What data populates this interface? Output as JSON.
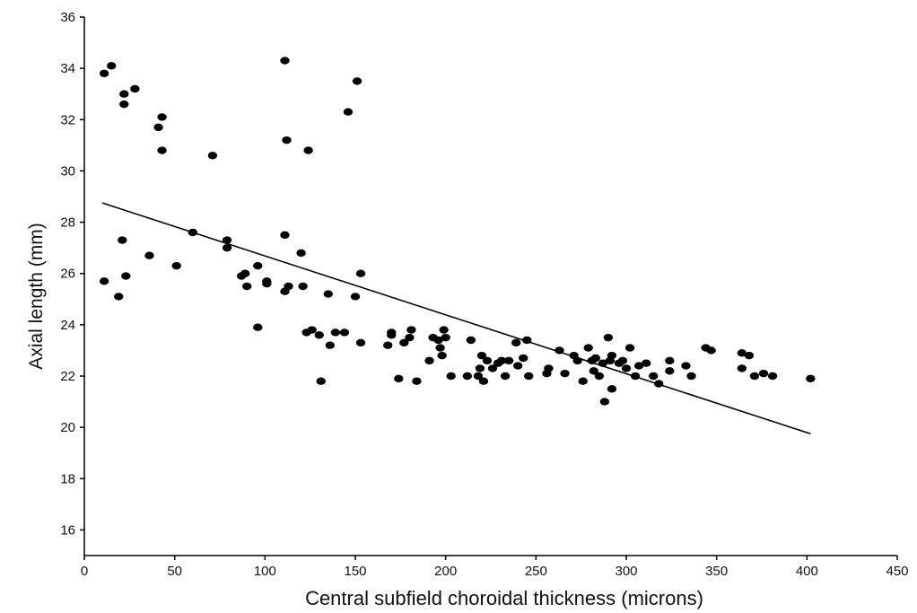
{
  "chart_data": {
    "type": "scatter",
    "title": "",
    "xlabel": "Central subfield choroidal thickness (microns)",
    "ylabel": "Axial length (mm)",
    "xlim": [
      0,
      450
    ],
    "ylim": [
      15,
      36
    ],
    "xticks": [
      0,
      50,
      100,
      150,
      200,
      250,
      300,
      350,
      400,
      450
    ],
    "yticks": [
      16,
      18,
      20,
      22,
      24,
      26,
      28,
      30,
      32,
      34,
      36
    ],
    "grid": false,
    "legend": "none",
    "point_color": "#000000",
    "line_color": "#000000",
    "trendline": {
      "x": [
        10,
        402
      ],
      "y": [
        28.75,
        19.75
      ]
    },
    "series": [
      {
        "points": [
          [
            11,
            33.8
          ],
          [
            15,
            34.1
          ],
          [
            22,
            33.0
          ],
          [
            22,
            32.6
          ],
          [
            28,
            33.2
          ],
          [
            41,
            31.7
          ],
          [
            43,
            32.1
          ],
          [
            43,
            30.8
          ],
          [
            11,
            25.7
          ],
          [
            19,
            25.1
          ],
          [
            21,
            27.3
          ],
          [
            23,
            25.9
          ],
          [
            36,
            26.7
          ],
          [
            51,
            26.3
          ],
          [
            60,
            27.6
          ],
          [
            71,
            30.6
          ],
          [
            79,
            27.3
          ],
          [
            79,
            27.0
          ],
          [
            87,
            25.9
          ],
          [
            89,
            26.0
          ],
          [
            90,
            25.5
          ],
          [
            96,
            26.3
          ],
          [
            96,
            23.9
          ],
          [
            101,
            25.6
          ],
          [
            101,
            25.7
          ],
          [
            111,
            34.3
          ],
          [
            111,
            27.5
          ],
          [
            111,
            25.3
          ],
          [
            112,
            31.2
          ],
          [
            113,
            25.5
          ],
          [
            120,
            26.8
          ],
          [
            121,
            25.5
          ],
          [
            123,
            23.7
          ],
          [
            124,
            30.8
          ],
          [
            126,
            23.8
          ],
          [
            130,
            23.6
          ],
          [
            131,
            21.8
          ],
          [
            135,
            25.2
          ],
          [
            136,
            23.2
          ],
          [
            139,
            23.7
          ],
          [
            144,
            23.7
          ],
          [
            146,
            32.3
          ],
          [
            150,
            25.1
          ],
          [
            151,
            33.5
          ],
          [
            153,
            26.0
          ],
          [
            153,
            23.3
          ],
          [
            168,
            23.2
          ],
          [
            170,
            23.6
          ],
          [
            170,
            23.7
          ],
          [
            174,
            21.9
          ],
          [
            177,
            23.3
          ],
          [
            180,
            23.5
          ],
          [
            181,
            23.8
          ],
          [
            184,
            21.8
          ],
          [
            191,
            22.6
          ],
          [
            193,
            23.5
          ],
          [
            196,
            23.4
          ],
          [
            197,
            23.1
          ],
          [
            198,
            22.8
          ],
          [
            199,
            23.8
          ],
          [
            200,
            23.5
          ],
          [
            203,
            22.0
          ],
          [
            212,
            22.0
          ],
          [
            214,
            23.4
          ],
          [
            218,
            22.0
          ],
          [
            219,
            22.3
          ],
          [
            220,
            22.8
          ],
          [
            221,
            21.8
          ],
          [
            223,
            22.6
          ],
          [
            226,
            22.3
          ],
          [
            229,
            22.5
          ],
          [
            231,
            22.6
          ],
          [
            233,
            22.0
          ],
          [
            235,
            22.6
          ],
          [
            239,
            23.3
          ],
          [
            240,
            22.4
          ],
          [
            243,
            22.7
          ],
          [
            245,
            23.4
          ],
          [
            246,
            22.0
          ],
          [
            256,
            22.1
          ],
          [
            257,
            22.3
          ],
          [
            263,
            23.0
          ],
          [
            266,
            22.1
          ],
          [
            271,
            22.8
          ],
          [
            273,
            22.6
          ],
          [
            276,
            21.8
          ],
          [
            279,
            23.1
          ],
          [
            281,
            22.6
          ],
          [
            282,
            22.2
          ],
          [
            283,
            22.7
          ],
          [
            285,
            22.0
          ],
          [
            287,
            22.5
          ],
          [
            288,
            21.0
          ],
          [
            290,
            23.5
          ],
          [
            291,
            22.6
          ],
          [
            292,
            22.8
          ],
          [
            292,
            21.5
          ],
          [
            296,
            22.5
          ],
          [
            298,
            22.6
          ],
          [
            300,
            22.3
          ],
          [
            302,
            23.1
          ],
          [
            305,
            22.0
          ],
          [
            307,
            22.4
          ],
          [
            311,
            22.5
          ],
          [
            315,
            22.0
          ],
          [
            318,
            21.7
          ],
          [
            324,
            22.6
          ],
          [
            324,
            22.2
          ],
          [
            333,
            22.4
          ],
          [
            336,
            22.0
          ],
          [
            344,
            23.1
          ],
          [
            347,
            23.0
          ],
          [
            364,
            22.9
          ],
          [
            364,
            22.3
          ],
          [
            368,
            22.8
          ],
          [
            371,
            22.0
          ],
          [
            376,
            22.1
          ],
          [
            381,
            22.0
          ],
          [
            402,
            21.9
          ]
        ]
      }
    ]
  }
}
